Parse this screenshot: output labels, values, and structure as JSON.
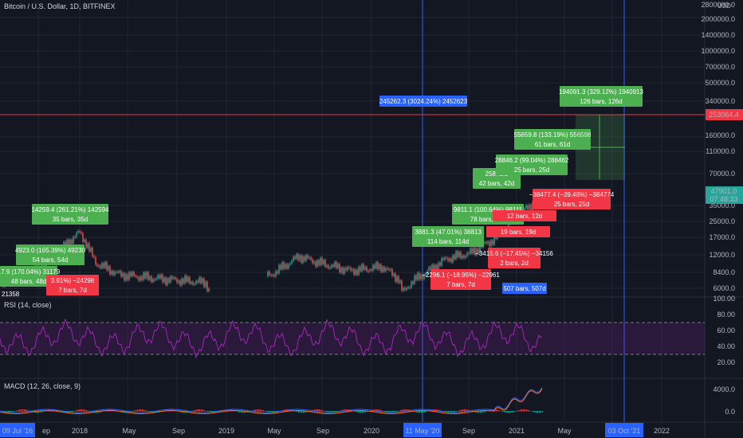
{
  "header": {
    "symbol": "Bitcoin / U.S. Dollar, 1D, BITFINEX",
    "currency": "USD"
  },
  "price_axis": {
    "labels": [
      "2800000.0",
      "2000000.0",
      "1400000.0",
      "1000000.0",
      "700000.0",
      "500000.0",
      "340000.0",
      "160000.0",
      "110000.0",
      "70000.0",
      "35000.0",
      "25000.0",
      "17000.0",
      "12000.0",
      "8400.0",
      "6000.0"
    ],
    "hline_price": "253064.4",
    "last_price": "47901.0",
    "countdown": "07:48:33"
  },
  "rsi": {
    "title": "RSI (14, close)",
    "labels": [
      "100.00",
      "80.00",
      "60.00",
      "40.00",
      "20.00"
    ]
  },
  "macd": {
    "title": "MACD (12, 26, close, 9)",
    "labels": [
      "4000.0",
      "0.0"
    ]
  },
  "time_axis": {
    "labels": [
      "09 Jul '16",
      "ep",
      "2018",
      "May",
      "Sep",
      "2019",
      "May",
      "Sep",
      "2020",
      "11 May '20",
      "Sep",
      "2021",
      "May",
      "03 Oct '21",
      "2022"
    ]
  },
  "annotations": {
    "green": [
      [
        "14259.4 (261.21%) 142594",
        "35 bars, 35d"
      ],
      [
        "4923.0 (165.39%) 49230",
        "54 bars, 54d"
      ],
      [
        "17.9 (170.04%) 31179",
        "48 bars, 48d"
      ],
      [
        "3881.3 (47.01%) 38813",
        "114 bars, 114d"
      ],
      [
        "9811.1 (100.64%) 98111",
        "78 bars, 78d"
      ],
      [
        "25843.5",
        "42 bars, 42d"
      ],
      [
        "28846.2 (99.04%) 288462",
        "25 bars, 25d"
      ],
      [
        "55659.8 (133.19%) 556598",
        "61 bars, 61d"
      ],
      [
        "194091.3 (329.12%) 1940913",
        "126 bars, 126d"
      ]
    ],
    "red": [
      [
        "3.81%) −24298",
        "7 bars, 7d"
      ],
      [
        "−3415.6 (−17.45%) −34156",
        "2 bars, 2d"
      ],
      [
        "−2296.1 (−18.95%) −22961",
        "7 bars, 7d"
      ],
      [
        "19 bars, 19d"
      ],
      [
        "12 bars, 12d"
      ],
      [
        "−38477.4 (−39.48%) −384774",
        "25 bars, 25d"
      ]
    ],
    "blue": [
      [
        "245262.3 (3024.24%) 2452623"
      ],
      [
        "507 bars, 507d"
      ]
    ],
    "partial_label": "21358"
  },
  "colors": {
    "background": "#131722",
    "up": "#26a69a",
    "down": "#ef5350",
    "green_box": "#4caf50",
    "red_box": "#f23645",
    "blue_box": "#2962ff",
    "rsi": "#9c27b0",
    "hline": "#f23645"
  }
}
